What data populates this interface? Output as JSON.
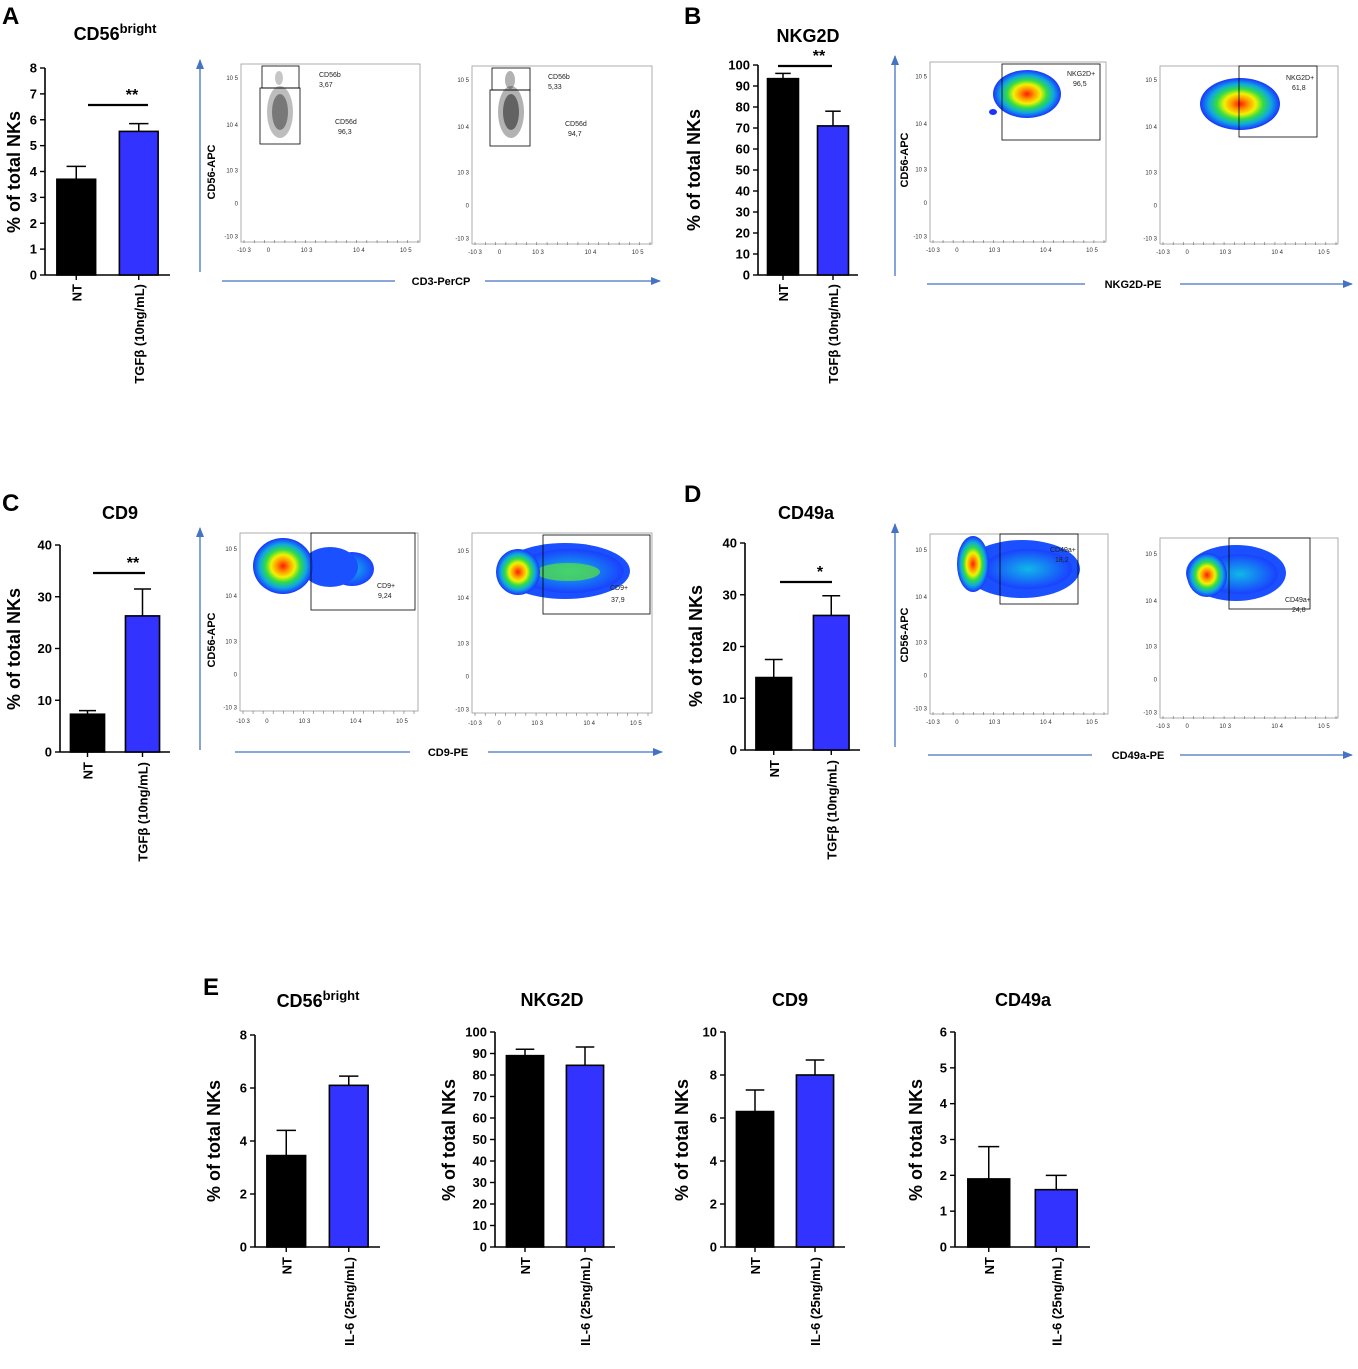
{
  "colors": {
    "nt": "#000000",
    "treated": "#3333ff",
    "arrow": "#4472c4"
  },
  "panels": {
    "A": {
      "letter": "A",
      "title_main": "CD56",
      "title_sup": "bright"
    },
    "B": {
      "letter": "B"
    },
    "C": {
      "letter": "C"
    },
    "D": {
      "letter": "D"
    },
    "E": {
      "letter": "E"
    }
  },
  "flow": {
    "A": {
      "x_label": "CD3-PerCP",
      "y_label": "CD56-APC",
      "plots": [
        {
          "gate_top_name": "CD56b",
          "gate_top_value": "3,67",
          "gate_bottom_name": "CD56d",
          "gate_bottom_value": "96,3"
        },
        {
          "gate_top_name": "CD56b",
          "gate_top_value": "5,33",
          "gate_bottom_name": "CD56d",
          "gate_bottom_value": "94,7"
        }
      ]
    },
    "B": {
      "x_label": "NKG2D-PE",
      "y_label": "CD56-APC",
      "plots": [
        {
          "gate_name": "NKG2D+",
          "gate_value": "96,5"
        },
        {
          "gate_name": "NKG2D+",
          "gate_value": "61,8"
        }
      ]
    },
    "C": {
      "x_label": "CD9-PE",
      "y_label": "CD56-APC",
      "plots": [
        {
          "gate_name": "CD9+",
          "gate_value": "9,24"
        },
        {
          "gate_name": "CD9+",
          "gate_value": "37,9"
        }
      ]
    },
    "D": {
      "x_label": "CD49a-PE",
      "y_label": "CD56-APC",
      "plots": [
        {
          "gate_name": "CD49a+",
          "gate_value": "18,2"
        },
        {
          "gate_name": "CD49a+",
          "gate_value": "24,8"
        }
      ]
    },
    "tick_labels": {
      "x": [
        "-10 3",
        "0",
        "10 3",
        "10 4",
        "10 5"
      ],
      "y": [
        "10 5",
        "10 4",
        "10 3",
        "0",
        "-10 3"
      ]
    }
  },
  "chart_data": [
    {
      "id": "A",
      "type": "bar",
      "title": "CD56bright",
      "ylabel": "% of total NKs",
      "categories": [
        "NT",
        "TGFβ (10ng/mL)"
      ],
      "values": [
        3.7,
        5.55
      ],
      "errors": [
        0.5,
        0.3
      ],
      "ylim": [
        0,
        8
      ],
      "yticks": [
        0,
        1,
        2,
        3,
        4,
        5,
        6,
        7,
        8
      ],
      "significance": "**"
    },
    {
      "id": "B",
      "type": "bar",
      "title": "NKG2D",
      "ylabel": "% of total NKs",
      "categories": [
        "NT",
        "TGFβ (10ng/mL)"
      ],
      "values": [
        93.5,
        71
      ],
      "errors": [
        2.5,
        7
      ],
      "ylim": [
        0,
        100
      ],
      "yticks": [
        0,
        10,
        20,
        30,
        40,
        50,
        60,
        70,
        80,
        90,
        100
      ],
      "significance": "**"
    },
    {
      "id": "C",
      "type": "bar",
      "title": "CD9",
      "ylabel": "% of total NKs",
      "categories": [
        "NT",
        "TGFβ (10ng/mL)"
      ],
      "values": [
        7.3,
        26.3
      ],
      "errors": [
        0.7,
        5.2
      ],
      "ylim": [
        0,
        40
      ],
      "yticks": [
        0,
        10,
        20,
        30,
        40
      ],
      "significance": "**"
    },
    {
      "id": "D",
      "type": "bar",
      "title": "CD49a",
      "ylabel": "% of total NKs",
      "categories": [
        "NT",
        "TGFβ (10ng/mL)"
      ],
      "values": [
        14,
        26
      ],
      "errors": [
        3.5,
        3.8
      ],
      "ylim": [
        0,
        40
      ],
      "yticks": [
        0,
        10,
        20,
        30,
        40
      ],
      "significance": "*"
    },
    {
      "id": "E1",
      "type": "bar",
      "title": "CD56bright",
      "ylabel": "% of total NKs",
      "categories": [
        "NT",
        "IL-6 (25ng/mL)"
      ],
      "values": [
        3.45,
        6.1
      ],
      "errors": [
        0.95,
        0.35
      ],
      "ylim": [
        0,
        8
      ],
      "yticks": [
        0,
        2,
        4,
        6,
        8
      ],
      "significance": ""
    },
    {
      "id": "E2",
      "type": "bar",
      "title": "NKG2D",
      "ylabel": "% of total NKs",
      "categories": [
        "NT",
        "IL-6 (25ng/mL)"
      ],
      "values": [
        89,
        84.5
      ],
      "errors": [
        3,
        8.5
      ],
      "ylim": [
        0,
        100
      ],
      "yticks": [
        0,
        10,
        20,
        30,
        40,
        50,
        60,
        70,
        80,
        90,
        100
      ],
      "significance": ""
    },
    {
      "id": "E3",
      "type": "bar",
      "title": "CD9",
      "ylabel": "% of total NKs",
      "categories": [
        "NT",
        "IL-6 (25ng/mL)"
      ],
      "values": [
        6.3,
        8
      ],
      "errors": [
        1,
        0.7
      ],
      "ylim": [
        0,
        10
      ],
      "yticks": [
        0,
        2,
        4,
        6,
        8,
        10
      ],
      "significance": ""
    },
    {
      "id": "E4",
      "type": "bar",
      "title": "CD49a",
      "ylabel": "% of total NKs",
      "categories": [
        "NT",
        "IL-6 (25ng/mL)"
      ],
      "values": [
        1.9,
        1.6
      ],
      "errors": [
        0.9,
        0.4
      ],
      "ylim": [
        0,
        6
      ],
      "yticks": [
        0,
        1,
        2,
        3,
        4,
        5,
        6
      ],
      "significance": ""
    }
  ]
}
